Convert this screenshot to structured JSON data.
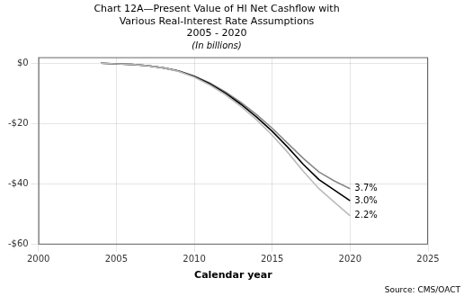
{
  "chart_data": {
    "type": "line",
    "title": [
      "Chart 12A—Present Value of HI Net Cashflow with",
      "Various Real-Interest Rate Assumptions",
      "2005 - 2020"
    ],
    "subtitle": "(In billions)",
    "xlabel": "Calendar year",
    "x": [
      2004,
      2005,
      2006,
      2007,
      2008,
      2009,
      2010,
      2011,
      2012,
      2013,
      2014,
      2015,
      2016,
      2017,
      2018,
      2019,
      2020
    ],
    "series": [
      {
        "color": "#bbbbbb",
        "values": [
          0.0,
          -0.2,
          -0.4,
          -0.8,
          -1.5,
          -2.7,
          -4.6,
          -7.2,
          -10.4,
          -14.3,
          -18.7,
          -23.8,
          -29.5,
          -35.8,
          -41.5,
          -46.0,
          -50.5
        ]
      },
      {
        "color": "#000000",
        "values": [
          0.0,
          -0.2,
          -0.4,
          -0.8,
          -1.5,
          -2.6,
          -4.4,
          -6.8,
          -9.9,
          -13.6,
          -17.8,
          -22.5,
          -27.8,
          -33.5,
          -38.5,
          -42.0,
          -45.5
        ]
      },
      {
        "color": "#888888",
        "values": [
          0.0,
          -0.2,
          -0.4,
          -0.8,
          -1.5,
          -2.5,
          -4.2,
          -6.5,
          -9.5,
          -13.0,
          -17.0,
          -21.5,
          -26.5,
          -31.5,
          -36.0,
          -39.0,
          -41.5
        ]
      }
    ],
    "annotations": [
      {
        "text": "3.7%",
        "x": 2020,
        "y": -41.5
      },
      {
        "text": "3.0%",
        "x": 2020,
        "y": -45.5
      },
      {
        "text": "2.2%",
        "x": 2020,
        "y": -50.5
      },
      {
        "text": "Source: CMS/OACT"
      }
    ],
    "xlim": [
      2000,
      2025
    ],
    "xticks": [
      2000,
      2005,
      2010,
      2015,
      2020,
      2025
    ],
    "ylim": [
      -60,
      2
    ],
    "yticks": [
      {
        "value": 0,
        "label": "$0"
      },
      {
        "value": -20,
        "label": "-$20"
      },
      {
        "value": -40,
        "label": "-$40"
      },
      {
        "value": -60,
        "label": "-$60"
      }
    ],
    "grid": true
  }
}
